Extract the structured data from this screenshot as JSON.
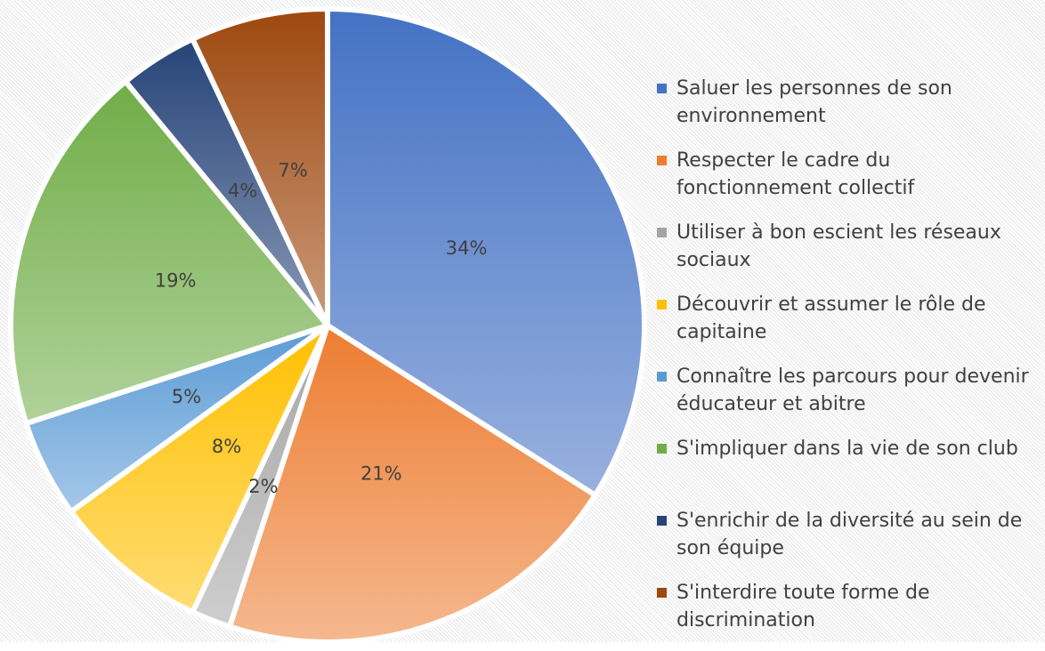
{
  "chart_data": {
    "type": "pie",
    "categories": [
      "Saluer les personnes de son environnement",
      "Respecter le cadre du fonctionnement collectif",
      "Utiliser à bon escient les réseaux sociaux",
      "Découvrir et assumer le rôle de capitaine",
      "Connaître les parcours pour devenir éducateur et abitre",
      "S'impliquer dans la vie de son club",
      "S'enrichir de la diversité au sein de son équipe",
      "S'interdire toute forme de discrimination"
    ],
    "values": [
      34,
      21,
      2,
      8,
      5,
      19,
      4,
      7
    ],
    "value_labels": [
      "34%",
      "21%",
      "2%",
      "8%",
      "5%",
      "19%",
      "4%",
      "7%"
    ],
    "colors": [
      "#4472c4",
      "#ed7d31",
      "#a5a5a5",
      "#ffc000",
      "#5b9bd5",
      "#70ad47",
      "#264478",
      "#9e480e"
    ],
    "legend": "right"
  }
}
